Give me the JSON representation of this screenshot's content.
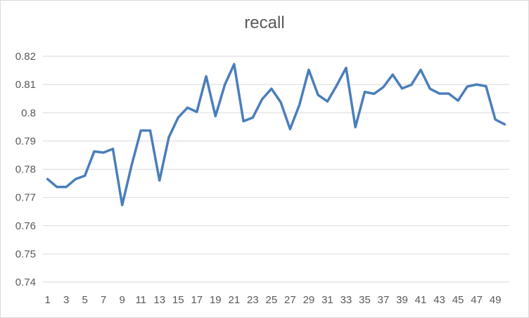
{
  "chart_data": {
    "type": "line",
    "title": "recall",
    "xlabel": "",
    "ylabel": "",
    "ylim": [
      0.74,
      0.82
    ],
    "y_ticks": [
      "0.74",
      "0.75",
      "0.76",
      "0.77",
      "0.78",
      "0.79",
      "0.8",
      "0.81",
      "0.82"
    ],
    "x": [
      1,
      2,
      3,
      4,
      5,
      6,
      7,
      8,
      9,
      10,
      11,
      12,
      13,
      14,
      15,
      16,
      17,
      18,
      19,
      20,
      21,
      22,
      23,
      24,
      25,
      26,
      27,
      28,
      29,
      30,
      31,
      32,
      33,
      34,
      35,
      36,
      37,
      38,
      39,
      40,
      41,
      42,
      43,
      44,
      45,
      46,
      47,
      48,
      49,
      50
    ],
    "x_tick_labels": [
      "1",
      "3",
      "5",
      "7",
      "9",
      "11",
      "13",
      "15",
      "17",
      "19",
      "21",
      "23",
      "25",
      "27",
      "29",
      "31",
      "33",
      "35",
      "37",
      "39",
      "41",
      "43",
      "45",
      "47",
      "49"
    ],
    "grid": true,
    "legend": "none",
    "series": [
      {
        "color": "#4a7ebb",
        "values": [
          0.7765,
          0.7737,
          0.7737,
          0.7765,
          0.7777,
          0.7863,
          0.7859,
          0.7872,
          0.7673,
          0.7813,
          0.7937,
          0.7937,
          0.776,
          0.7913,
          0.7983,
          0.8018,
          0.8003,
          0.8129,
          0.7988,
          0.8099,
          0.8172,
          0.797,
          0.7983,
          0.8048,
          0.8085,
          0.8037,
          0.7942,
          0.8028,
          0.8152,
          0.8063,
          0.804,
          0.8097,
          0.8159,
          0.7949,
          0.8074,
          0.8067,
          0.8091,
          0.8135,
          0.8086,
          0.8099,
          0.8152,
          0.8085,
          0.8068,
          0.8068,
          0.8043,
          0.8093,
          0.81,
          0.8094,
          0.7976,
          0.7959
        ]
      }
    ]
  }
}
